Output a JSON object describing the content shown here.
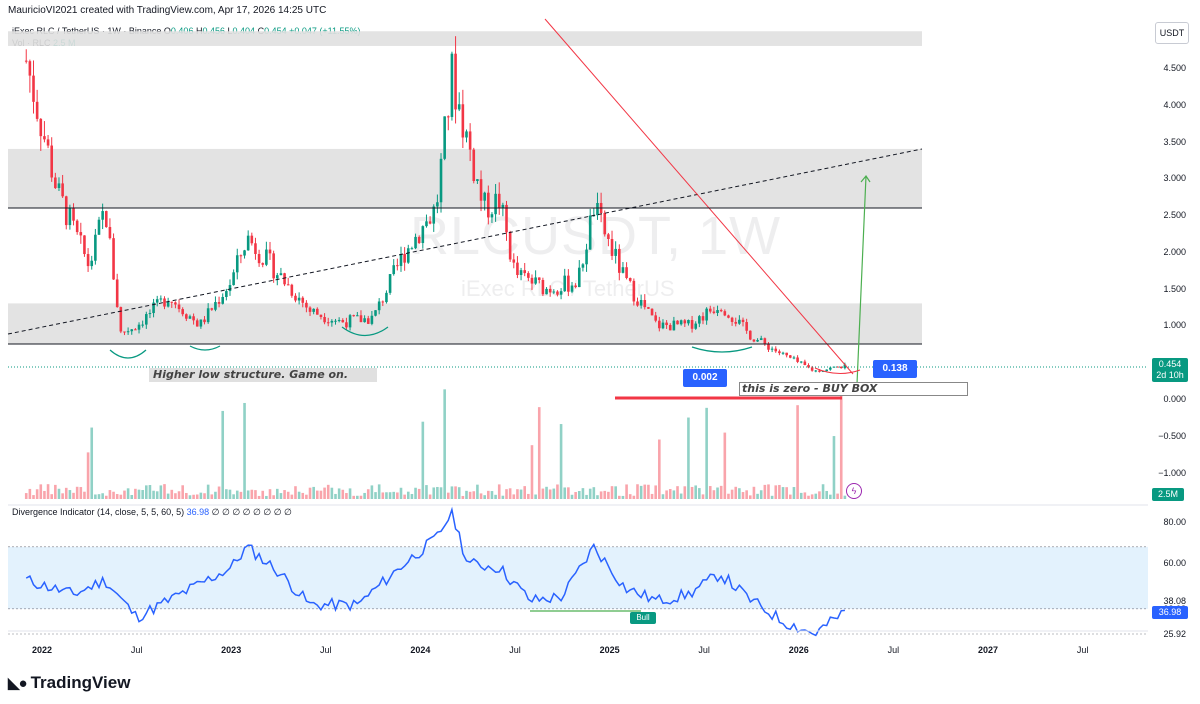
{
  "header": {
    "text": "MauricioVI2021 created with TradingView.com, Apr 17, 2026 14:25 UTC"
  },
  "legend": {
    "symbol": "iExec RLC / TetherUS · 1W · Binance",
    "open_label": "O",
    "open": "0.406",
    "high_label": "H",
    "high": "0.456",
    "low_label": "L",
    "low": "0.404",
    "close_label": "C",
    "close": "0.454",
    "change": "+0.047 (+11.55%)",
    "volume_label": "Vol · RLC",
    "volume": "2.5 M",
    "indicator_label": "Divergence Indicator (14, close, 5, 5, 60, 5)",
    "indicator_value": "36.98",
    "indicator_flags": "∅ ∅ ∅ ∅ ∅ ∅ ∅ ∅"
  },
  "currency_button": "USDT",
  "watermark": {
    "ticker": "RLCUSDT, 1W",
    "name": "iExec RLC / TetherUS"
  },
  "price_axis": {
    "labels": [
      "4.500",
      "4.000",
      "3.500",
      "3.000",
      "2.500",
      "2.000",
      "1.500",
      "1.000",
      "0.000",
      "−0.500",
      "−1.000"
    ],
    "current_price": "0.454",
    "countdown": "2d 10h",
    "volume_tag": "2.5M"
  },
  "osc_axis": {
    "labels": [
      "80.00",
      "60.00",
      "38.08",
      "38.08",
      "25.92"
    ],
    "current": "36.98"
  },
  "time_axis": {
    "labels": [
      "2022",
      "Jul",
      "2023",
      "Jul",
      "2024",
      "Jul",
      "2025",
      "Jul",
      "2026",
      "Jul",
      "2027",
      "Jul"
    ]
  },
  "annotations": {
    "note_left": "Higher low structure. Game on.",
    "note_right": "this is zero - BUY BOX",
    "callout_low": "0.002",
    "callout_high": "0.138",
    "bull_label": "Bull"
  },
  "colors": {
    "up": "#089981",
    "down": "#f23645",
    "accent": "#2962ff",
    "zone": "#e0e0e0",
    "osc_band": "#e3f2fd"
  },
  "brand": "TradingView",
  "chart_data": {
    "type": "candlestick",
    "timeframe": "1W",
    "x_range": [
      "2021-12",
      "2027-12"
    ],
    "price_range": [
      -1.3,
      4.9
    ],
    "price_series": [
      {
        "date": "2021-12",
        "close": 4.6
      },
      {
        "date": "2022-02",
        "close": 2.8
      },
      {
        "date": "2022-04",
        "close": 1.8
      },
      {
        "date": "2022-05",
        "close": 2.6
      },
      {
        "date": "2022-06",
        "close": 0.9
      },
      {
        "date": "2022-07",
        "close": 1.0
      },
      {
        "date": "2022-09",
        "close": 1.4
      },
      {
        "date": "2022-11",
        "close": 1.0
      },
      {
        "date": "2023-01",
        "close": 1.6
      },
      {
        "date": "2023-02",
        "close": 2.2
      },
      {
        "date": "2023-04",
        "close": 1.7
      },
      {
        "date": "2023-06",
        "close": 1.2
      },
      {
        "date": "2023-08",
        "close": 1.05
      },
      {
        "date": "2023-10",
        "close": 1.1
      },
      {
        "date": "2023-12",
        "close": 2.0
      },
      {
        "date": "2024-02",
        "close": 2.6
      },
      {
        "date": "2024-03",
        "close": 4.4
      },
      {
        "date": "2024-05",
        "close": 2.6
      },
      {
        "date": "2024-06",
        "close": 2.7
      },
      {
        "date": "2024-07",
        "close": 1.7
      },
      {
        "date": "2024-09",
        "close": 1.5
      },
      {
        "date": "2024-11",
        "close": 1.6
      },
      {
        "date": "2024-12",
        "close": 2.6
      },
      {
        "date": "2025-02",
        "close": 1.6
      },
      {
        "date": "2025-04",
        "close": 1.0
      },
      {
        "date": "2025-06",
        "close": 1.0
      },
      {
        "date": "2025-08",
        "close": 1.3
      },
      {
        "date": "2025-10",
        "close": 0.85
      },
      {
        "date": "2025-12",
        "close": 0.6
      },
      {
        "date": "2026-02",
        "close": 0.38
      },
      {
        "date": "2026-04",
        "close": 0.454
      }
    ],
    "zones": [
      {
        "from": 4.8,
        "to": 5.0
      },
      {
        "from": 2.6,
        "to": 3.4
      },
      {
        "from": 0.75,
        "to": 1.3
      }
    ],
    "oscillator": {
      "name": "Divergence Indicator",
      "ylim": [
        25.92,
        85
      ],
      "band": [
        38.08,
        68
      ],
      "values": [
        {
          "date": "2021-12",
          "value": 52
        },
        {
          "date": "2022-03",
          "value": 45
        },
        {
          "date": "2022-05",
          "value": 52
        },
        {
          "date": "2022-07",
          "value": 34
        },
        {
          "date": "2022-10",
          "value": 46
        },
        {
          "date": "2023-01",
          "value": 58
        },
        {
          "date": "2023-02",
          "value": 68
        },
        {
          "date": "2023-04",
          "value": 56
        },
        {
          "date": "2023-06",
          "value": 40
        },
        {
          "date": "2023-09",
          "value": 40
        },
        {
          "date": "2023-12",
          "value": 60
        },
        {
          "date": "2024-02",
          "value": 72
        },
        {
          "date": "2024-03",
          "value": 85
        },
        {
          "date": "2024-04",
          "value": 60
        },
        {
          "date": "2024-06",
          "value": 58
        },
        {
          "date": "2024-08",
          "value": 42
        },
        {
          "date": "2024-10",
          "value": 44
        },
        {
          "date": "2024-12",
          "value": 68
        },
        {
          "date": "2025-02",
          "value": 48
        },
        {
          "date": "2025-04",
          "value": 42
        },
        {
          "date": "2025-06",
          "value": 45
        },
        {
          "date": "2025-08",
          "value": 55
        },
        {
          "date": "2025-10",
          "value": 42
        },
        {
          "date": "2025-12",
          "value": 32
        },
        {
          "date": "2026-02",
          "value": 26
        },
        {
          "date": "2026-04",
          "value": 36.98
        }
      ]
    }
  }
}
